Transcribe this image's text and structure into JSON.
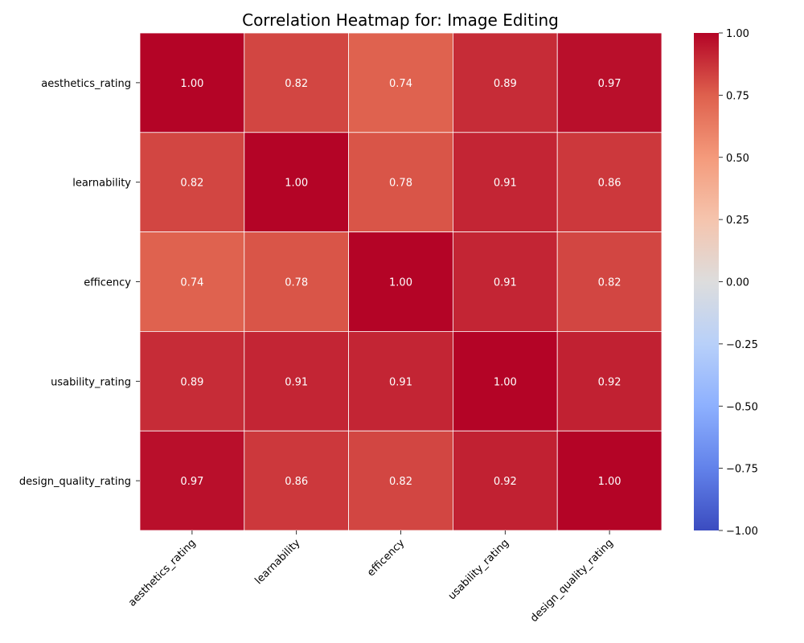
{
  "chart_data": {
    "type": "heatmap",
    "title": "Correlation Heatmap for: Image Editing",
    "xlabel": "",
    "ylabel": "",
    "x_labels": [
      "aesthetics_rating",
      "learnability",
      "efficency",
      "usability_rating",
      "design_quality_rating"
    ],
    "y_labels": [
      "aesthetics_rating",
      "learnability",
      "efficency",
      "usability_rating",
      "design_quality_rating"
    ],
    "values": [
      [
        1.0,
        0.82,
        0.74,
        0.89,
        0.97
      ],
      [
        0.82,
        1.0,
        0.78,
        0.91,
        0.86
      ],
      [
        0.74,
        0.78,
        1.0,
        0.91,
        0.82
      ],
      [
        0.89,
        0.91,
        0.91,
        1.0,
        0.92
      ],
      [
        0.97,
        0.86,
        0.82,
        0.92,
        1.0
      ]
    ],
    "cell_labels": [
      [
        "1.00",
        "0.82",
        "0.74",
        "0.89",
        "0.97"
      ],
      [
        "0.82",
        "1.00",
        "0.78",
        "0.91",
        "0.86"
      ],
      [
        "0.74",
        "0.78",
        "1.00",
        "0.91",
        "0.82"
      ],
      [
        "0.89",
        "0.91",
        "0.91",
        "1.00",
        "0.92"
      ],
      [
        "0.97",
        "0.86",
        "0.82",
        "0.92",
        "1.00"
      ]
    ],
    "colormap": "coolwarm",
    "vmin": -1.0,
    "vmax": 1.0,
    "colorbar_ticks": [
      {
        "value": 1.0,
        "label": "1.00"
      },
      {
        "value": 0.75,
        "label": "0.75"
      },
      {
        "value": 0.5,
        "label": "0.50"
      },
      {
        "value": 0.25,
        "label": "0.25"
      },
      {
        "value": 0.0,
        "label": "0.00"
      },
      {
        "value": -0.25,
        "label": "−0.25"
      },
      {
        "value": -0.5,
        "label": "−0.50"
      },
      {
        "value": -0.75,
        "label": "−0.75"
      },
      {
        "value": -1.0,
        "label": "−1.00"
      }
    ],
    "grid_line_color": "#ffffff",
    "cell_text_color": "#ffffff",
    "legend": "colorbar-right"
  }
}
